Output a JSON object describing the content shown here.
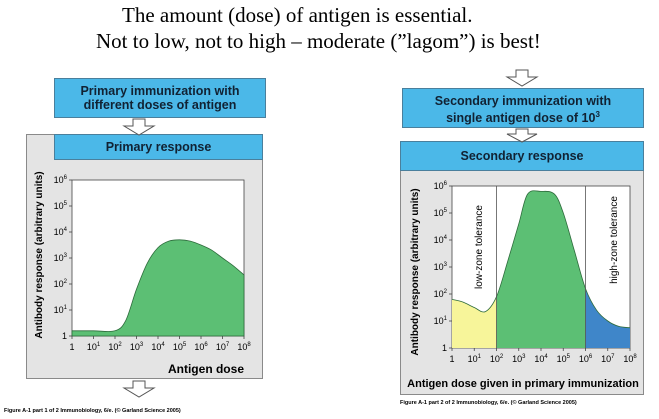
{
  "headline": {
    "line1": "The amount (dose) of antigen is essential.",
    "line2": "Not to low, not to high – moderate (”lagom”) is best!"
  },
  "left_panel": {
    "top_box_line1": "Primary immunization with",
    "top_box_line2": "different doses of antigen",
    "response_box": "Primary response",
    "ylabel": "Antibody response (arbitrary units)",
    "xlabel": "Antigen dose",
    "caption": "Figure A-1 part 1 of 2  Immunobiology, 6/e. (© Garland Science 2005)"
  },
  "right_panel": {
    "top_box_line1": "Secondary immunization with",
    "top_box_line2": "single antigen dose of 10",
    "top_box_exp": "3",
    "response_box": "Secondary response",
    "ylabel": "Antibody response (arbitrary units)",
    "xlabel": "Antigen dose given in primary immunization",
    "zone_low": "low-zone tolerance",
    "zone_high": "high-zone tolerance",
    "caption": "Figure A-1 part 2 of 2  Immunobiology, 6/e. (© Garland Science 2005)"
  },
  "colors": {
    "blue_box": "#4bb8e8",
    "green_area": "#5cbf74",
    "yellow_area": "#f7f59a",
    "blue_area": "#3f86c9",
    "grey_panel": "#e4e4e4"
  },
  "chart_data": [
    {
      "type": "area",
      "title": "Primary response",
      "xlabel": "Antigen dose",
      "ylabel": "Antibody response (arbitrary units)",
      "x_ticks": [
        "1",
        "10^1",
        "10^2",
        "10^3",
        "10^4",
        "10^5",
        "10^6",
        "10^7",
        "10^8"
      ],
      "y_ticks": [
        "1",
        "10^1",
        "10^2",
        "10^3",
        "10^4",
        "10^5",
        "10^6"
      ],
      "x_scale": "log",
      "y_scale": "log",
      "xlim": [
        0,
        8
      ],
      "ylim": [
        0,
        6
      ],
      "points": [
        [
          0,
          0.2
        ],
        [
          1,
          0.2
        ],
        [
          2,
          0.2
        ],
        [
          2.5,
          0.6
        ],
        [
          3,
          1.8
        ],
        [
          3.5,
          2.8
        ],
        [
          4,
          3.4
        ],
        [
          4.5,
          3.65
        ],
        [
          5,
          3.7
        ],
        [
          5.5,
          3.65
        ],
        [
          6,
          3.5
        ],
        [
          6.5,
          3.3
        ],
        [
          7,
          3.0
        ],
        [
          7.5,
          2.7
        ],
        [
          8,
          2.35
        ]
      ],
      "grid": false,
      "legend": "none"
    },
    {
      "type": "area",
      "title": "Secondary response",
      "xlabel": "Antigen dose given in primary immunization",
      "ylabel": "Antibody response (arbitrary units)",
      "x_ticks": [
        "1",
        "10^1",
        "10^2",
        "10^3",
        "10^4",
        "10^5",
        "10^6",
        "10^7",
        "10^8"
      ],
      "y_ticks": [
        "1",
        "10^1",
        "10^2",
        "10^3",
        "10^4",
        "10^5",
        "10^6"
      ],
      "x_scale": "log",
      "y_scale": "log",
      "xlim": [
        0,
        8
      ],
      "ylim": [
        0,
        6
      ],
      "points": [
        [
          0,
          1.8
        ],
        [
          0.5,
          1.7
        ],
        [
          1,
          1.5
        ],
        [
          1.5,
          1.35
        ],
        [
          2,
          1.9
        ],
        [
          2.5,
          3.2
        ],
        [
          3,
          4.6
        ],
        [
          3.4,
          5.7
        ],
        [
          4,
          5.8
        ],
        [
          4.6,
          5.7
        ],
        [
          5,
          5.0
        ],
        [
          5.5,
          3.6
        ],
        [
          6,
          2.2
        ],
        [
          6.5,
          1.4
        ],
        [
          7,
          1.0
        ],
        [
          7.5,
          0.8
        ],
        [
          8,
          0.75
        ]
      ],
      "regions": [
        {
          "name": "low-zone tolerance",
          "x": [
            0,
            2
          ],
          "color": "#f7f59a"
        },
        {
          "name": "high-zone tolerance",
          "x": [
            6,
            8
          ],
          "color": "#3f86c9"
        }
      ],
      "grid": false,
      "legend": "none"
    }
  ]
}
